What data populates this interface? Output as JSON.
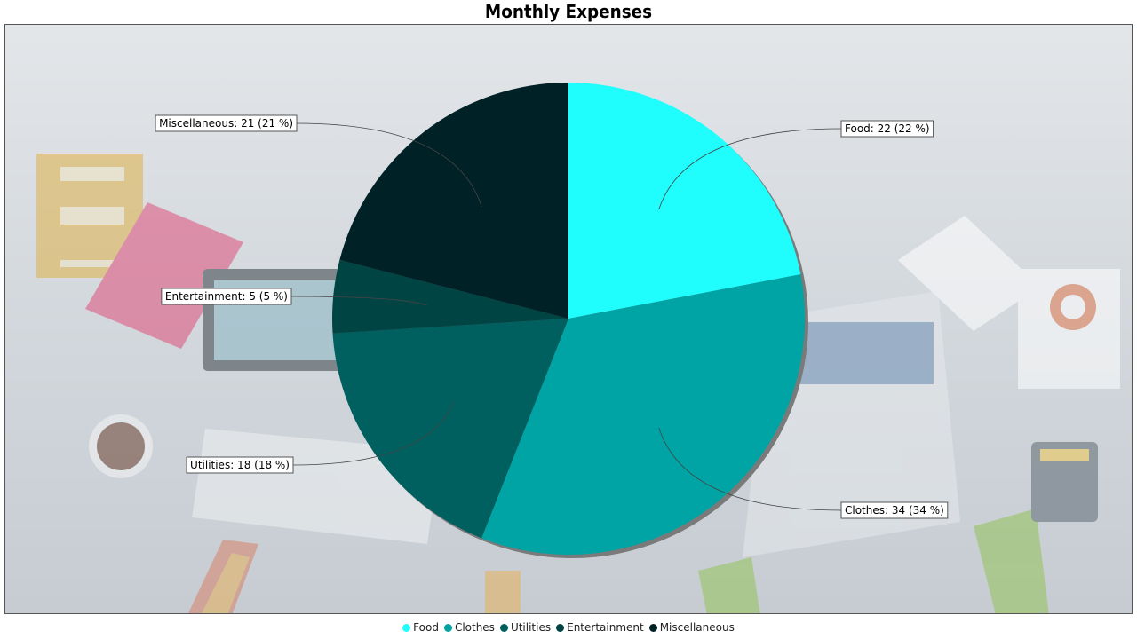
{
  "chart_data": {
    "type": "pie",
    "title": "Monthly Expenses",
    "slices": [
      {
        "name": "Food",
        "value": 22,
        "label": "Food: 22 (22 %)",
        "color": "#1ffdfd"
      },
      {
        "name": "Clothes",
        "value": 34,
        "label": "Clothes: 34 (34 %)",
        "color": "#00a4a4"
      },
      {
        "name": "Utilities",
        "value": 18,
        "label": "Utilities: 18 (18 %)",
        "color": "#006060"
      },
      {
        "name": "Entertainment",
        "value": 5,
        "label": "Entertainment: 5 (5 %)",
        "color": "#004444"
      },
      {
        "name": "Miscellaneous",
        "value": 21,
        "label": "Miscellaneous: 21 (21 %)",
        "color": "#002226"
      }
    ],
    "start_angle": "12 o'clock",
    "direction": "clockwise",
    "legend_position": "bottom",
    "background": "office desk illustration"
  }
}
